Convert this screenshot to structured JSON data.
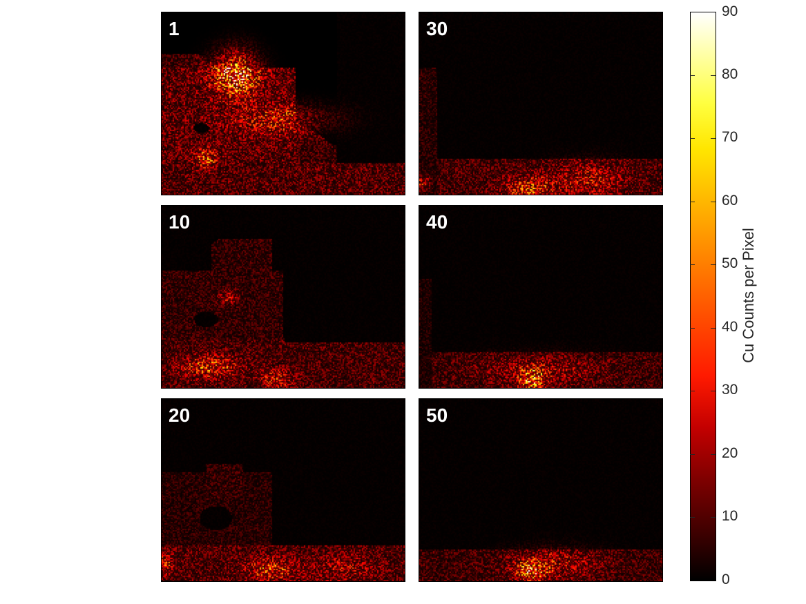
{
  "chart_data": {
    "type": "heatmap",
    "panels": [
      {
        "label": "1"
      },
      {
        "label": "30"
      },
      {
        "label": "10"
      },
      {
        "label": "40"
      },
      {
        "label": "20"
      },
      {
        "label": "50"
      }
    ],
    "colorbar": {
      "label": "Cu Counts per Pixel",
      "ticks": [
        "0",
        "10",
        "20",
        "30",
        "40",
        "50",
        "60",
        "70",
        "80",
        "90"
      ],
      "range": [
        0,
        90
      ],
      "colormap": "hot"
    }
  }
}
